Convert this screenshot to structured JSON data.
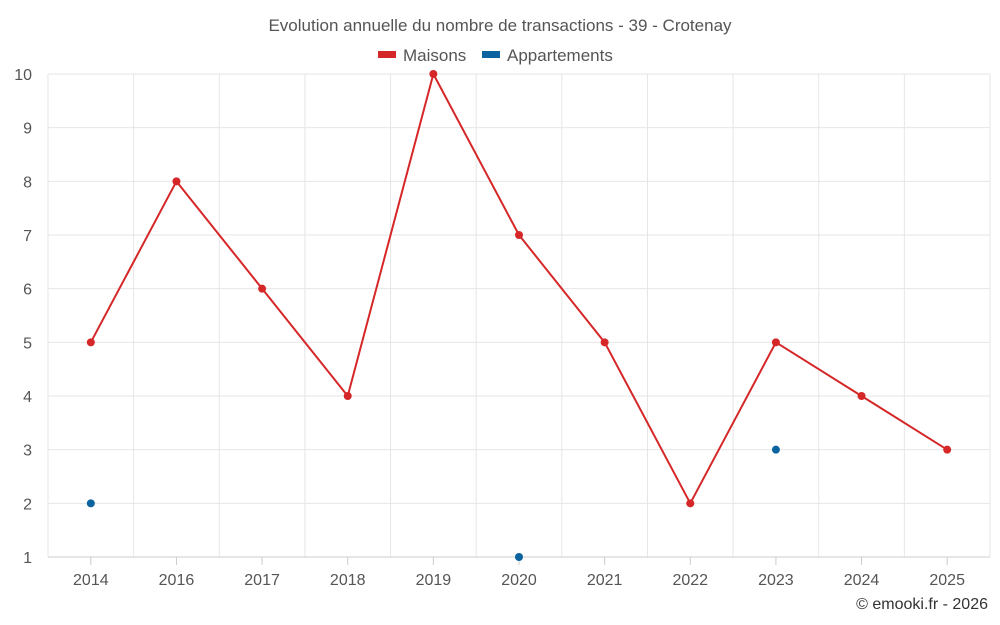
{
  "chart_data": {
    "type": "line",
    "title": "Evolution annuelle du nombre de transactions - 39 - Crotenay",
    "categories": [
      "2014",
      "2016",
      "2017",
      "2018",
      "2019",
      "2020",
      "2021",
      "2022",
      "2023",
      "2024",
      "2025"
    ],
    "series": [
      {
        "name": "Maisons",
        "color": "#d62728",
        "values": [
          5,
          8,
          6,
          4,
          10,
          7,
          5,
          2,
          5,
          4,
          3
        ]
      },
      {
        "name": "Appartements",
        "color": "#0b63a0",
        "values": [
          2,
          null,
          null,
          null,
          null,
          1,
          null,
          null,
          3,
          null,
          null
        ]
      }
    ],
    "ylim": [
      1,
      10
    ],
    "yticks": [
      1,
      2,
      3,
      4,
      5,
      6,
      7,
      8,
      9,
      10
    ],
    "grid": true,
    "legend_position": "top-center"
  },
  "credit": "© emooki.fr - 2026"
}
